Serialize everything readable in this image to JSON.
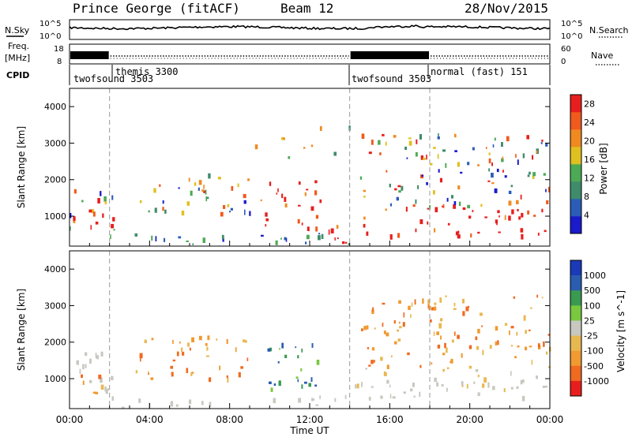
{
  "header": {
    "station": "Prince George (fitACF)",
    "beam": "Beam 12",
    "date": "28/Nov/2015"
  },
  "labels": {
    "nsky": "N.Sky",
    "nsearch": "N.Search",
    "freq": "Freq.",
    "mhz": "[MHz]",
    "nave": "Nave",
    "cpid": "CPID",
    "time_axis": "Time UT",
    "slant_range": "Slant Range [km]"
  },
  "noise_axis": {
    "left_ticks": [
      "10^5",
      "10^0"
    ],
    "right_ticks": [
      "10^5",
      "10^0"
    ]
  },
  "freq_axis": {
    "left_ticks": [
      "18",
      "8"
    ],
    "right_ticks": [
      "60",
      "0"
    ]
  },
  "cpid_segments": [
    {
      "name": "twofsound",
      "id": "3503",
      "start_h": 0,
      "end_h": 2
    },
    {
      "name": "themis",
      "id": "3300",
      "start_h": 2,
      "end_h": 14
    },
    {
      "name": "twofsound",
      "id": "3503",
      "start_h": 14,
      "end_h": 18
    },
    {
      "name": "normal (fast)",
      "id": "151",
      "start_h": 18,
      "end_h": 24
    }
  ],
  "cpid_text": {
    "seg1": "twofsound 3503",
    "seg2": "themis 3300",
    "seg3": "twofsound 3503",
    "seg4": "normal (fast) 151"
  },
  "time_ticks": [
    "00:00",
    "04:00",
    "08:00",
    "12:00",
    "16:00",
    "20:00",
    "00:00"
  ],
  "colors": {
    "power": [
      "#1a1acc",
      "#2b5cb8",
      "#3f8c6a",
      "#4caa55",
      "#e0c020",
      "#f08a20",
      "#f05a1c",
      "#e81e1e"
    ],
    "velocity": [
      "#e81e1e",
      "#f06a20",
      "#f09a30",
      "#e8b850",
      "#c8c8c0",
      "#78c840",
      "#3a9a50",
      "#2a5cb0",
      "#1a3ab8"
    ],
    "accent": "#000000"
  },
  "chart_data": [
    {
      "type": "heatmap",
      "title": "",
      "xlabel": "Time UT",
      "ylabel": "Slant Range [km]",
      "x_range_hours": [
        0,
        24
      ],
      "ylim": [
        180,
        4500
      ],
      "y_ticks": [
        1000,
        2000,
        3000,
        4000
      ],
      "colorbar": {
        "label": "Power [dB]",
        "ticks": [
          4,
          8,
          12,
          16,
          20,
          24,
          28
        ],
        "range": [
          0,
          30
        ]
      },
      "scatter_regions": [
        {
          "t0": 0.0,
          "t1": 2.2,
          "r0": 550,
          "r1": 1850,
          "level": "mixed"
        },
        {
          "t0": 0.8,
          "t1": 2.2,
          "r0": 700,
          "r1": 1200,
          "level": "high"
        },
        {
          "t0": 2.0,
          "t1": 14.0,
          "r0": 180,
          "r1": 560,
          "level": "low"
        },
        {
          "t0": 3.0,
          "t1": 9.0,
          "r0": 1100,
          "r1": 2200,
          "level": "mixed"
        },
        {
          "t0": 9.5,
          "t1": 12.5,
          "r0": 700,
          "r1": 2100,
          "level": "high"
        },
        {
          "t0": 12.5,
          "t1": 14.5,
          "r0": 200,
          "r1": 900,
          "level": "high"
        },
        {
          "t0": 14.0,
          "t1": 24.0,
          "r0": 500,
          "r1": 1300,
          "level": "high"
        },
        {
          "t0": 14.5,
          "t1": 24.0,
          "r0": 1300,
          "r1": 3300,
          "level": "mixed"
        },
        {
          "t0": 9.0,
          "t1": 16.0,
          "r0": 2600,
          "r1": 3500,
          "level": "sparse"
        }
      ]
    },
    {
      "type": "heatmap",
      "title": "",
      "xlabel": "Time UT",
      "ylabel": "Slant Range [km]",
      "x_range_hours": [
        0,
        24
      ],
      "ylim": [
        180,
        4500
      ],
      "y_ticks": [
        1000,
        2000,
        3000,
        4000
      ],
      "colorbar": {
        "label": "Velocity [m s^-1]",
        "ticks": [
          1000,
          500,
          100,
          25,
          -25,
          -100,
          -500,
          -1000
        ]
      },
      "scatter_regions": [
        {
          "t0": 0.0,
          "t1": 2.2,
          "r0": 550,
          "r1": 1850,
          "level": "ground"
        },
        {
          "t0": 0.5,
          "t1": 2.0,
          "r0": 600,
          "r1": 1200,
          "level": "toward"
        },
        {
          "t0": 2.0,
          "t1": 14.0,
          "r0": 180,
          "r1": 560,
          "level": "ground"
        },
        {
          "t0": 3.0,
          "t1": 9.0,
          "r0": 1000,
          "r1": 2200,
          "level": "toward"
        },
        {
          "t0": 9.5,
          "t1": 12.5,
          "r0": 700,
          "r1": 2100,
          "level": "away"
        },
        {
          "t0": 14.0,
          "t1": 24.0,
          "r0": 500,
          "r1": 1300,
          "level": "ground"
        },
        {
          "t0": 14.5,
          "t1": 24.0,
          "r0": 1300,
          "r1": 3300,
          "level": "toward"
        }
      ]
    }
  ]
}
